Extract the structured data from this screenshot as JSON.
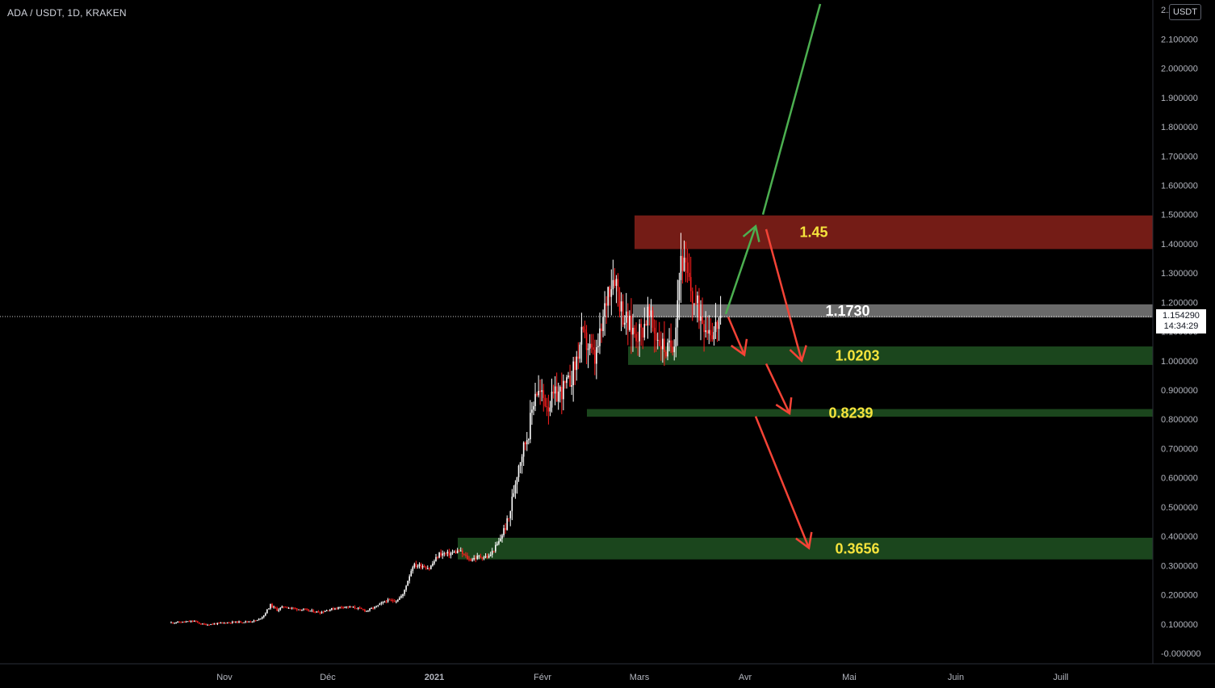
{
  "header": {
    "symbol": "ADA / USDT, 1D, KRAKEN",
    "currency_button": "USDT"
  },
  "price_badge": {
    "price": "1.154290",
    "countdown": "14:34:29"
  },
  "colors": {
    "background": "#000000",
    "candle_up": "#ffffff",
    "candle_down": "#ff1f1f",
    "resistance_zone": "#7a1e17",
    "support_zone": "#1c4a1f",
    "current_zone": "#8d8d8d",
    "arrow_up": "#4caf50",
    "arrow_down": "#f44336",
    "label_yellow": "#f5e33c",
    "label_white": "#ffffff"
  },
  "chart_data": {
    "type": "candlestick",
    "title": "ADA / USDT, 1D, KRAKEN",
    "ylim": [
      -0.04,
      2.21
    ],
    "y_ticks": [
      "2.200000",
      "2.100000",
      "2.000000",
      "1.900000",
      "1.800000",
      "1.700000",
      "1.600000",
      "1.500000",
      "1.400000",
      "1.300000",
      "1.200000",
      "1.100000",
      "1.000000",
      "0.900000",
      "0.800000",
      "0.700000",
      "0.600000",
      "0.500000",
      "0.400000",
      "0.300000",
      "0.200000",
      "0.100000",
      "-0.000000"
    ],
    "x_ticks": [
      "Nov",
      "Déc",
      "2021",
      "Févr",
      "Mars",
      "Avr",
      "Mai",
      "Juin",
      "Juill"
    ],
    "last_price": 1.15429,
    "price_path": [
      [
        0,
        0.105
      ],
      [
        8,
        0.107
      ],
      [
        14,
        0.11
      ],
      [
        18,
        0.1
      ],
      [
        22,
        0.098
      ],
      [
        28,
        0.102
      ],
      [
        36,
        0.106
      ],
      [
        46,
        0.108
      ],
      [
        52,
        0.112
      ],
      [
        56,
        0.13
      ],
      [
        60,
        0.165
      ],
      [
        64,
        0.148
      ],
      [
        68,
        0.16
      ],
      [
        72,
        0.155
      ],
      [
        78,
        0.15
      ],
      [
        84,
        0.145
      ],
      [
        90,
        0.14
      ],
      [
        96,
        0.15
      ],
      [
        104,
        0.16
      ],
      [
        112,
        0.155
      ],
      [
        118,
        0.145
      ],
      [
        124,
        0.16
      ],
      [
        130,
        0.18
      ],
      [
        136,
        0.18
      ],
      [
        140,
        0.2
      ],
      [
        146,
        0.3
      ],
      [
        152,
        0.3
      ],
      [
        156,
        0.29
      ],
      [
        162,
        0.34
      ],
      [
        168,
        0.34
      ],
      [
        174,
        0.35
      ],
      [
        180,
        0.32
      ],
      [
        186,
        0.33
      ],
      [
        192,
        0.33
      ],
      [
        198,
        0.38
      ],
      [
        204,
        0.46
      ],
      [
        210,
        0.65
      ],
      [
        216,
        0.76
      ],
      [
        220,
        0.9
      ],
      [
        224,
        0.88
      ],
      [
        228,
        0.85
      ],
      [
        232,
        0.88
      ],
      [
        236,
        0.9
      ],
      [
        240,
        0.92
      ],
      [
        244,
        0.98
      ],
      [
        248,
        1.08
      ],
      [
        252,
        1.05
      ],
      [
        256,
        1.0
      ],
      [
        260,
        1.1
      ],
      [
        264,
        1.25
      ],
      [
        268,
        1.3
      ],
      [
        272,
        1.18
      ],
      [
        276,
        1.12
      ],
      [
        280,
        1.1
      ],
      [
        284,
        1.1
      ],
      [
        288,
        1.16
      ],
      [
        292,
        1.1
      ],
      [
        296,
        1.06
      ],
      [
        300,
        1.03
      ],
      [
        304,
        1.08
      ],
      [
        308,
        1.36
      ],
      [
        312,
        1.28
      ],
      [
        316,
        1.2
      ],
      [
        320,
        1.16
      ],
      [
        324,
        1.12
      ],
      [
        328,
        1.1
      ],
      [
        332,
        1.154
      ]
    ],
    "zones": [
      {
        "name": "resistance",
        "from": 1.382,
        "to": 1.497,
        "label": "1.45"
      },
      {
        "name": "current",
        "from": 1.148,
        "to": 1.193,
        "label": "1.1730"
      },
      {
        "name": "support",
        "from": 0.986,
        "to": 1.049,
        "label": "1.0203"
      },
      {
        "name": "support",
        "from": 0.809,
        "to": 0.835,
        "label": "0.8239"
      },
      {
        "name": "support",
        "from": 0.321,
        "to": 0.395,
        "label": "0.3656"
      }
    ],
    "scenarios": [
      {
        "direction": "up",
        "from": 1.16,
        "to": 1.46
      },
      {
        "direction": "up",
        "from": 1.5,
        "to": 2.22
      },
      {
        "direction": "down",
        "from": 1.15,
        "to": 1.02
      },
      {
        "direction": "down",
        "from": 1.45,
        "to": 1.0
      },
      {
        "direction": "down",
        "from": 0.99,
        "to": 0.82
      },
      {
        "direction": "down",
        "from": 0.81,
        "to": 0.36
      }
    ]
  }
}
